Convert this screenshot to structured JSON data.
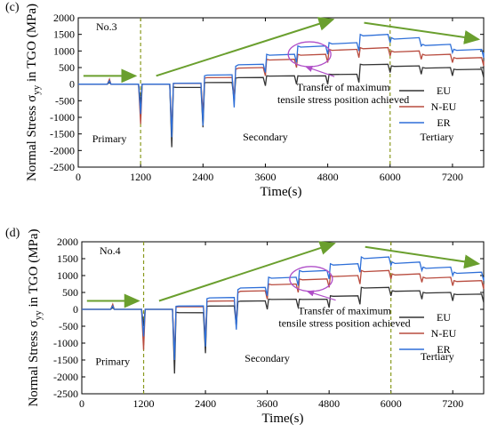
{
  "chart_data": [
    {
      "type": "line",
      "panel_label": "(c)",
      "specimen": "No.3",
      "xlabel": "Time(s)",
      "ylabel": "Normal Stress σ",
      "ylabel_sub": "yy",
      "ylabel_tail": " in TGO (MPa)",
      "xlim": [
        0,
        7800
      ],
      "ylim": [
        -2500,
        2000
      ],
      "xticks": [
        0,
        1200,
        2400,
        3600,
        4800,
        6000,
        7200
      ],
      "yticks": [
        -2500,
        -2000,
        -1500,
        -1000,
        -500,
        0,
        500,
        1000,
        1500,
        2000
      ],
      "stage_lines": [
        1200,
        6000
      ],
      "stages": [
        {
          "label": "Primary",
          "x": 600,
          "y": -1750
        },
        {
          "label": "Secondary",
          "x": 3600,
          "y": -1700
        },
        {
          "label": "Tertiary",
          "x": 6900,
          "y": -1700
        }
      ],
      "annotation": {
        "line1": "Transfer of maximum",
        "line2": "tensile stress position achieved",
        "x": 5100,
        "y": -200
      },
      "series": [
        {
          "name": "EU",
          "color": "#333333",
          "cycles": [
            [
              0,
              0
            ],
            [
              600,
              0
            ],
            [
              1200,
              0
            ],
            [
              1800,
              -100
            ],
            [
              2400,
              50
            ],
            [
              3000,
              200
            ],
            [
              3600,
              250
            ],
            [
              4200,
              250
            ],
            [
              4800,
              300
            ],
            [
              5400,
              600
            ],
            [
              6000,
              550
            ],
            [
              6600,
              500
            ],
            [
              7200,
              450
            ],
            [
              7800,
              400
            ]
          ]
        },
        {
          "name": "N-EU",
          "color": "#b84b3e",
          "cycles": [
            [
              0,
              0
            ],
            [
              600,
              0
            ],
            [
              1200,
              0
            ],
            [
              1800,
              20
            ],
            [
              2400,
              200
            ],
            [
              3000,
              500
            ],
            [
              3600,
              750
            ],
            [
              4200,
              900
            ],
            [
              4800,
              1050
            ],
            [
              5400,
              1100
            ],
            [
              6000,
              1000
            ],
            [
              6600,
              900
            ],
            [
              7200,
              800
            ],
            [
              7800,
              700
            ]
          ]
        },
        {
          "name": "ER",
          "color": "#2e6fd8",
          "cycles": [
            [
              0,
              0
            ],
            [
              600,
              0
            ],
            [
              1200,
              0
            ],
            [
              1800,
              30
            ],
            [
              2400,
              280
            ],
            [
              3000,
              600
            ],
            [
              3600,
              900
            ],
            [
              4200,
              1150
            ],
            [
              4800,
              1250
            ],
            [
              5400,
              1500
            ],
            [
              6000,
              1400
            ],
            [
              6600,
              1200
            ],
            [
              7200,
              1050
            ],
            [
              7800,
              950
            ]
          ]
        }
      ],
      "dips": [
        {
          "x": 1200,
          "EU": -600,
          "N-EU": -1200,
          "ER": -900
        },
        {
          "x": 1800,
          "EU": -1900,
          "N-EU": -1400,
          "ER": -1600
        },
        {
          "x": 2400,
          "EU": -1300,
          "N-EU": -900,
          "ER": -1250
        },
        {
          "x": 3000,
          "EU": -500,
          "N-EU": -400,
          "ER": -700
        }
      ],
      "peak_ups": [
        {
          "x": 600,
          "EU": 50,
          "N-EU": 150,
          "ER": 100
        }
      ]
    },
    {
      "type": "line",
      "panel_label": "(d)",
      "specimen": "No.4",
      "xlabel": "Time(s)",
      "ylabel": "Normal Stress σ",
      "ylabel_sub": "yy",
      "ylabel_tail": " in TGO (MPa)",
      "xlim": [
        0,
        7800
      ],
      "ylim": [
        -2500,
        2000
      ],
      "xticks": [
        0,
        1200,
        2400,
        3600,
        4800,
        6000,
        7200
      ],
      "yticks": [
        -2500,
        -2000,
        -1500,
        -1000,
        -500,
        0,
        500,
        1000,
        1500,
        2000
      ],
      "stage_lines": [
        1200,
        6000
      ],
      "stages": [
        {
          "label": "Primary",
          "x": 600,
          "y": -1650
        },
        {
          "label": "Secondary",
          "x": 3600,
          "y": -1550
        },
        {
          "label": "Tertiary",
          "x": 6900,
          "y": -1500
        }
      ],
      "annotation": {
        "line1": "Transfer of maximum",
        "line2": "tensile stress position achieved",
        "x": 5100,
        "y": -150
      },
      "series": [
        {
          "name": "EU",
          "color": "#333333",
          "cycles": [
            [
              0,
              0
            ],
            [
              600,
              0
            ],
            [
              1200,
              0
            ],
            [
              1800,
              -100
            ],
            [
              2400,
              100
            ],
            [
              3000,
              250
            ],
            [
              3600,
              300
            ],
            [
              4200,
              300
            ],
            [
              4800,
              400
            ],
            [
              5400,
              650
            ],
            [
              6000,
              550
            ],
            [
              6600,
              500
            ],
            [
              7200,
              450
            ],
            [
              7800,
              400
            ]
          ]
        },
        {
          "name": "N-EU",
          "color": "#b84b3e",
          "cycles": [
            [
              0,
              0
            ],
            [
              600,
              0
            ],
            [
              1200,
              0
            ],
            [
              1800,
              80
            ],
            [
              2400,
              250
            ],
            [
              3000,
              550
            ],
            [
              3600,
              750
            ],
            [
              4200,
              900
            ],
            [
              4800,
              1000
            ],
            [
              5400,
              1150
            ],
            [
              6000,
              1050
            ],
            [
              6600,
              950
            ],
            [
              7200,
              850
            ],
            [
              7800,
              750
            ]
          ]
        },
        {
          "name": "ER",
          "color": "#2e6fd8",
          "cycles": [
            [
              0,
              0
            ],
            [
              600,
              0
            ],
            [
              1200,
              0
            ],
            [
              1800,
              100
            ],
            [
              2400,
              350
            ],
            [
              3000,
              650
            ],
            [
              3600,
              950
            ],
            [
              4200,
              1150
            ],
            [
              4800,
              1350
            ],
            [
              5400,
              1550
            ],
            [
              6000,
              1400
            ],
            [
              6600,
              1250
            ],
            [
              7200,
              1100
            ],
            [
              7800,
              950
            ]
          ]
        }
      ],
      "dips": [
        {
          "x": 1200,
          "EU": -500,
          "N-EU": -1200,
          "ER": -800
        },
        {
          "x": 1800,
          "EU": -1900,
          "N-EU": -1300,
          "ER": -1500
        },
        {
          "x": 2400,
          "EU": -1300,
          "N-EU": -900,
          "ER": -1100
        },
        {
          "x": 3000,
          "EU": -500,
          "N-EU": -400,
          "ER": -600
        }
      ],
      "peak_ups": [
        {
          "x": 600,
          "EU": 50,
          "N-EU": 150,
          "ER": 100
        }
      ]
    }
  ]
}
